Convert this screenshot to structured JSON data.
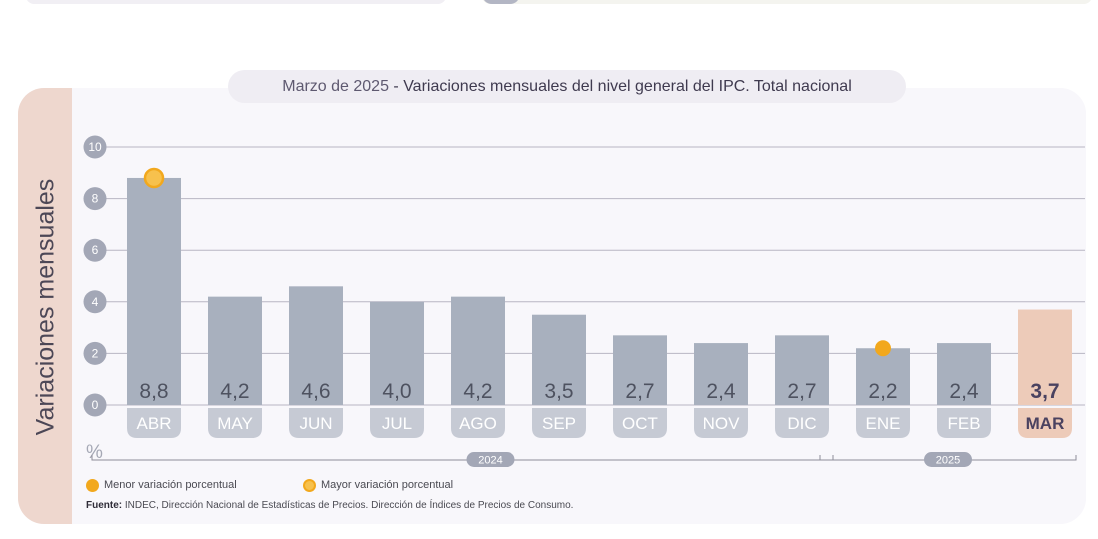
{
  "title": {
    "period": "Marzo de 2025",
    "separator": " - ",
    "text": "Variaciones mensuales del nivel general del IPC. Total nacional"
  },
  "y_axis_title": "Variaciones mensuales",
  "unit_label": "%",
  "legend": {
    "min_label": "Menor variación porcentual",
    "max_label": "Mayor variación porcentual"
  },
  "source": {
    "label": "Fuente:",
    "text": "INDEC, Dirección Nacional de Estadísticas de Precios. Dirección de Índices de Precios de Consumo."
  },
  "colors": {
    "bar": "#a8b0be",
    "bar_highlight": "#edcbb9",
    "marker": "#f2a81d",
    "grid": "#b8b6c3",
    "tick_bubble": "#a3a7b6",
    "category_pill": "#c6cad4",
    "category_pill_highlight": "#edcbb9",
    "value_text": "#4e5260",
    "value_text_highlight": "#4a4260"
  },
  "chart_data": {
    "type": "bar",
    "title": "Variaciones mensuales del nivel general del IPC. Total nacional",
    "xlabel": "",
    "ylabel": "Variaciones mensuales (%)",
    "ylim": [
      0,
      10
    ],
    "yticks": [
      0,
      2,
      4,
      6,
      8,
      10
    ],
    "ytick_labels": [
      "0",
      "2",
      "4",
      "6",
      "8",
      "10"
    ],
    "grid": true,
    "categories": [
      "ABR",
      "MAY",
      "JUN",
      "JUL",
      "AGO",
      "SEP",
      "OCT",
      "NOV",
      "DIC",
      "ENE",
      "FEB",
      "MAR"
    ],
    "values": [
      8.8,
      4.2,
      4.6,
      4.0,
      4.2,
      3.5,
      2.7,
      2.4,
      2.7,
      2.2,
      2.4,
      3.7
    ],
    "value_labels": [
      "8,8",
      "4,2",
      "4,6",
      "4,0",
      "4,2",
      "3,5",
      "2,7",
      "2,4",
      "2,7",
      "2,2",
      "2,4",
      "3,7"
    ],
    "highlight_category": "MAR",
    "max_category": "ABR",
    "min_category": "ENE",
    "year_groups": [
      {
        "label": "2024",
        "categories": [
          "ABR",
          "MAY",
          "JUN",
          "JUL",
          "AGO",
          "SEP",
          "OCT",
          "NOV",
          "DIC"
        ]
      },
      {
        "label": "2025",
        "categories": [
          "ENE",
          "FEB",
          "MAR"
        ]
      }
    ]
  }
}
